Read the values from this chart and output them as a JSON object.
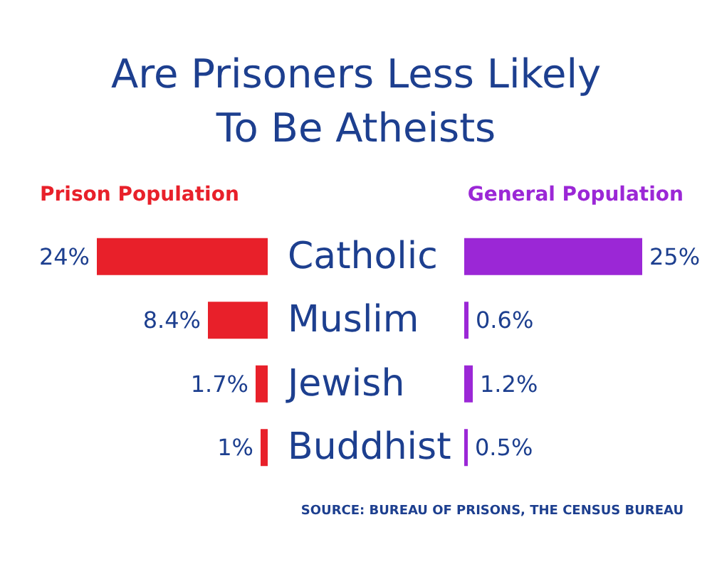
{
  "chart_data": [
    {
      "type": "bar",
      "orientation": "horizontal",
      "title": "Are Prisoners Less Likely\nTo Be Atheists",
      "categories": [
        "Catholic",
        "Muslim",
        "Jewish",
        "Buddhist"
      ],
      "series": [
        {
          "name": "Prison Population",
          "color": "#e8202a",
          "values": [
            24,
            8.4,
            1.7,
            1
          ],
          "value_labels": [
            "24%",
            "8.4%",
            "1.7%",
            "1%"
          ]
        }
      ],
      "annotations": [
        "SOURCE: BUREAU OF PRISONS, THE CENSUS BUREAU"
      ]
    },
    {
      "type": "bar",
      "orientation": "horizontal",
      "categories": [
        null,
        null,
        null,
        null
      ],
      "series": [
        {
          "name": "General Population",
          "color": "#9b27d6",
          "values": [
            25,
            0.6,
            1.2,
            0.5
          ],
          "value_labels": [
            "25%",
            "0.6%",
            "1.2%",
            "0.5%"
          ]
        }
      ]
    }
  ]
}
